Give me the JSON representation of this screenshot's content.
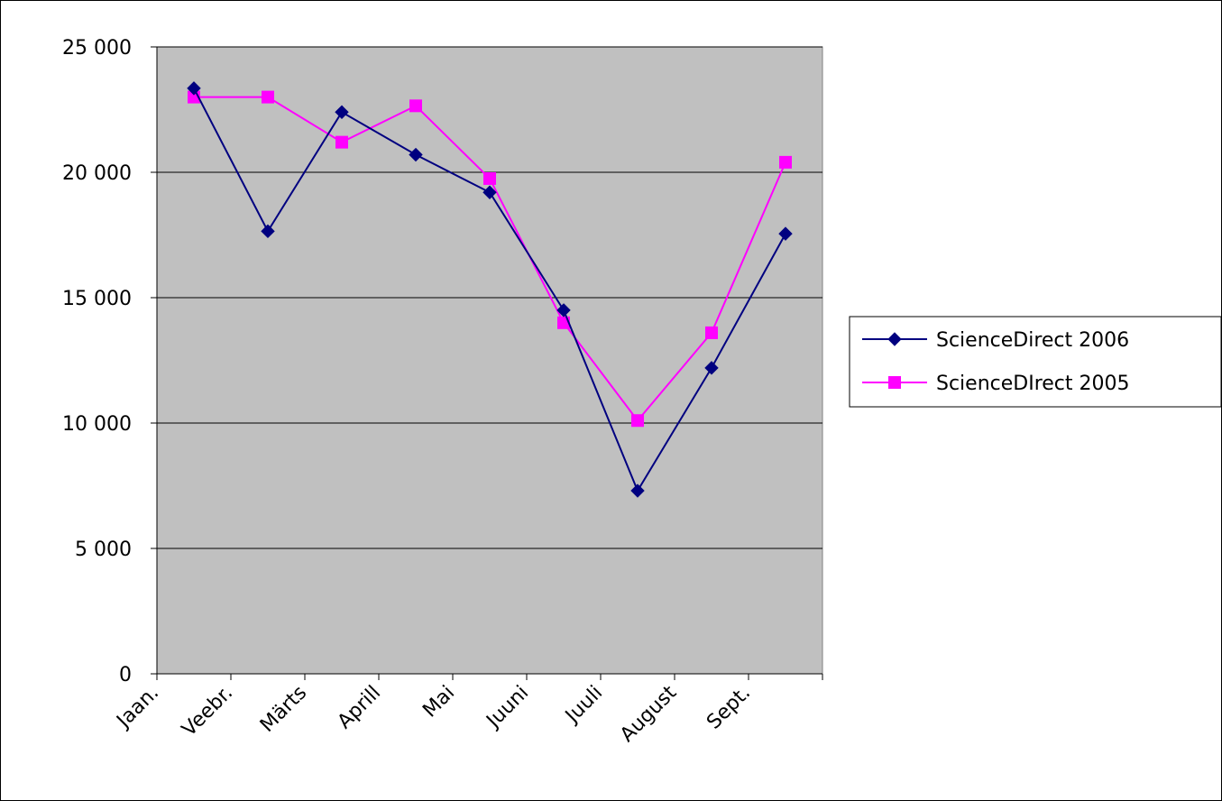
{
  "chart_data": {
    "type": "line",
    "title": "",
    "xlabel": "",
    "ylabel": "",
    "categories": [
      "Jaan.",
      "Veebr.",
      "Märts",
      "Aprill",
      "Mai",
      "Juuni",
      "Juuli",
      "August",
      "Sept."
    ],
    "ylim": [
      0,
      25000
    ],
    "ytick_values": [
      0,
      5000,
      10000,
      15000,
      20000,
      25000
    ],
    "ytick_labels": [
      "0",
      "5 000",
      "10 000",
      "15 000",
      "20 000",
      "25 000"
    ],
    "grid": true,
    "legend_position": "right",
    "plot_background": "#c0c0c0",
    "series": [
      {
        "name": "ScienceDirect 2006",
        "color": "#000080",
        "marker": "diamond",
        "values": [
          23350,
          17650,
          22400,
          20700,
          19200,
          14500,
          7300,
          12200,
          17550
        ]
      },
      {
        "name": "ScienceDIrect 2005",
        "color": "#ff00ff",
        "marker": "square",
        "values": [
          23000,
          23000,
          21200,
          22650,
          19750,
          14000,
          10100,
          13600,
          20400
        ]
      }
    ]
  }
}
